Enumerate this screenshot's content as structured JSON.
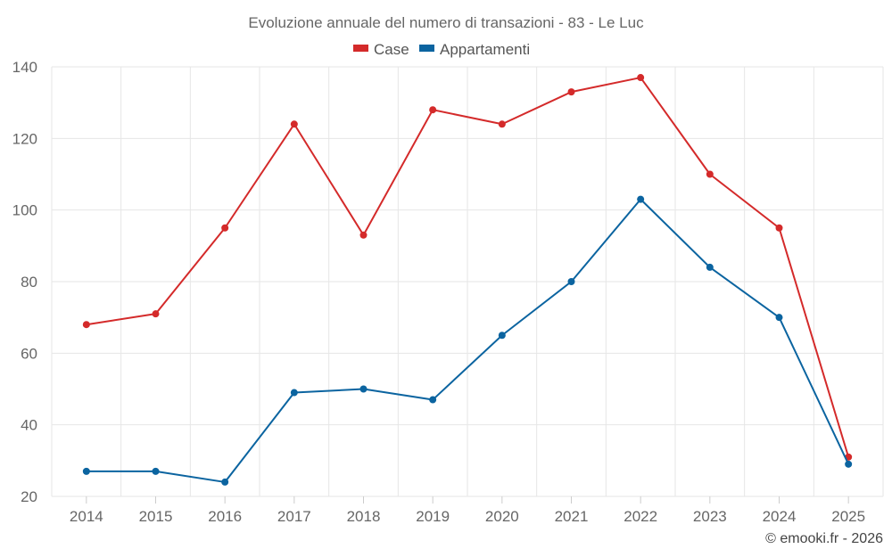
{
  "chart_data": {
    "type": "line",
    "title": "Evoluzione annuale del numero di transazioni - 83 - Le Luc",
    "categories": [
      "2014",
      "2015",
      "2016",
      "2017",
      "2018",
      "2019",
      "2020",
      "2021",
      "2022",
      "2023",
      "2024",
      "2025"
    ],
    "series": [
      {
        "name": "Case",
        "color": "#d42a2a",
        "values": [
          68,
          71,
          95,
          124,
          93,
          128,
          124,
          133,
          137,
          110,
          95,
          31
        ]
      },
      {
        "name": "Appartamenti",
        "color": "#0b64a0",
        "values": [
          27,
          27,
          24,
          49,
          50,
          47,
          65,
          80,
          103,
          84,
          70,
          29
        ]
      }
    ],
    "ylim": [
      20,
      140
    ],
    "yticks": [
      20,
      40,
      60,
      80,
      100,
      120,
      140
    ],
    "grid": true,
    "legend": "top-center",
    "xlabel": "",
    "ylabel": ""
  },
  "credit": "© emooki.fr - 2026"
}
